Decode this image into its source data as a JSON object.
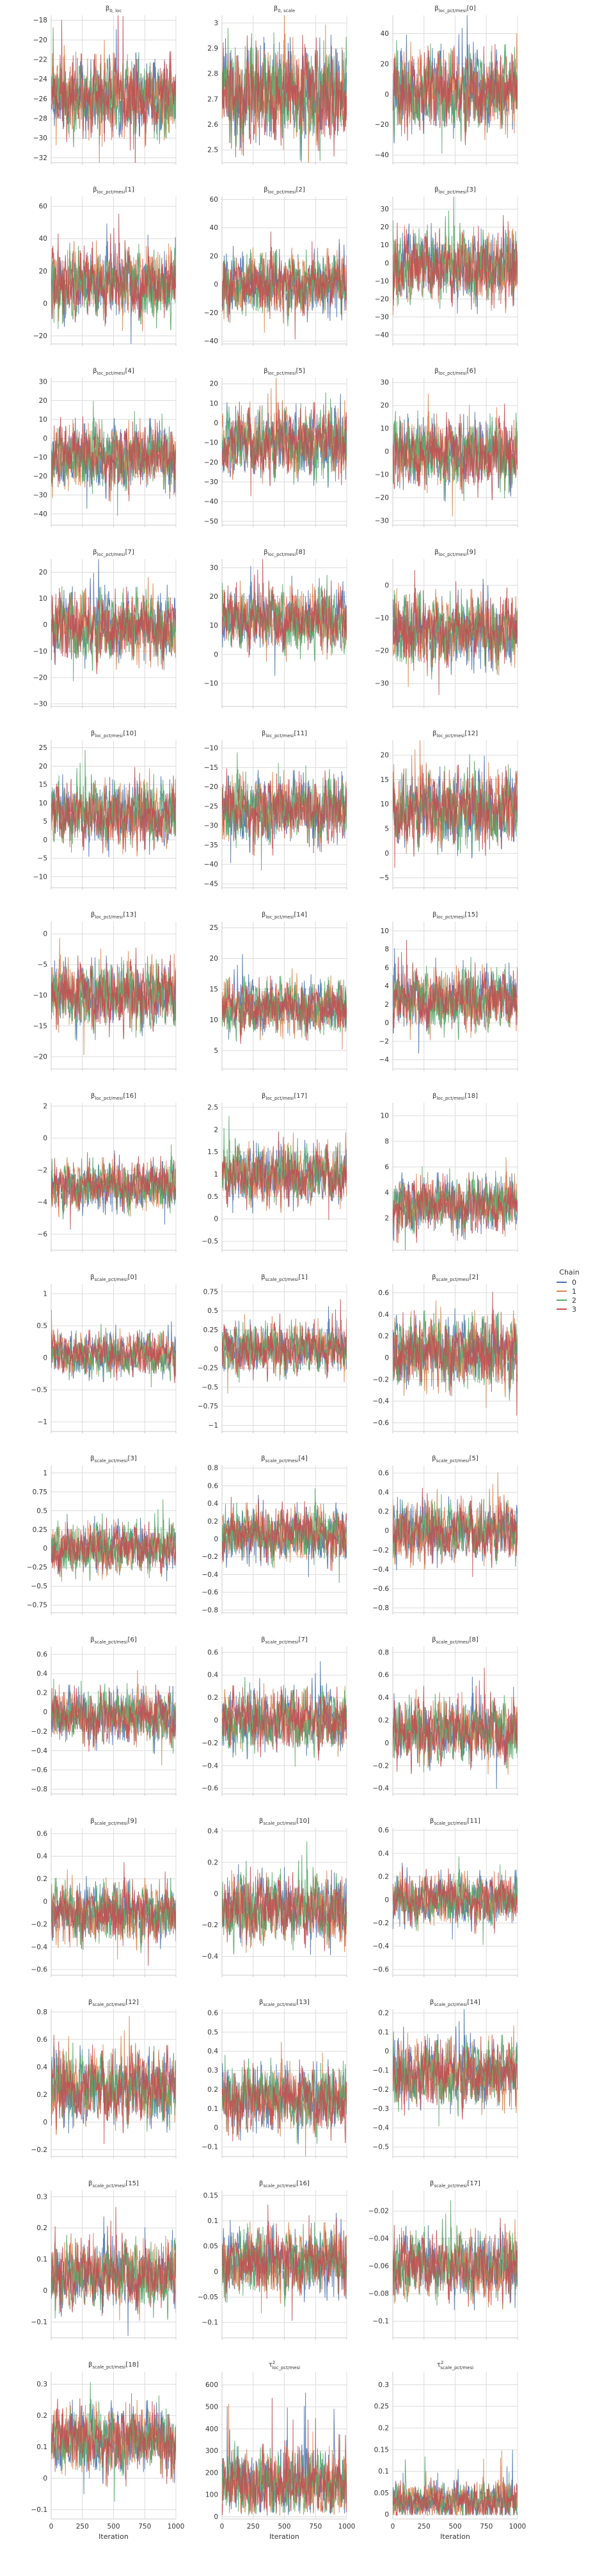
{
  "xlabel": "Iteration",
  "x_ticks": [
    0,
    250,
    500,
    750,
    1000
  ],
  "legend": {
    "title": "Chain",
    "placement": "right",
    "entries": [
      "0",
      "1",
      "2",
      "3"
    ],
    "colors": [
      "#4c72b0",
      "#dd8452",
      "#55a868",
      "#c44e52"
    ]
  },
  "chart_data": {
    "type": "line",
    "iterations": 1000,
    "panels": [
      {
        "title_base": "β",
        "title_sub": "0, loc",
        "title_index": "",
        "yticks": [
          -32,
          -30,
          -28,
          -26,
          -24,
          -22,
          -20,
          -18
        ],
        "ylim": [
          -32.5,
          -17.5
        ],
        "center": -25.8,
        "spread": 1.8
      },
      {
        "title_base": "β",
        "title_sub": "0, scale",
        "title_index": "",
        "yticks": [
          2.5,
          2.6,
          2.7,
          2.8,
          2.9,
          3.0
        ],
        "ylim": [
          2.45,
          3.03
        ],
        "center": 2.72,
        "spread": 0.09
      },
      {
        "title_base": "β",
        "title_sub": "loc_pct/mesi",
        "title_index": "[0]",
        "yticks": [
          -40,
          -20,
          0,
          20,
          40
        ],
        "ylim": [
          -45,
          52
        ],
        "center": 2,
        "spread": 12
      },
      {
        "title_base": "β",
        "title_sub": "loc_pct/mesi",
        "title_index": "[1]",
        "yticks": [
          -20,
          0,
          20,
          40,
          60
        ],
        "ylim": [
          -25,
          66
        ],
        "center": 12,
        "spread": 10
      },
      {
        "title_base": "β",
        "title_sub": "loc_pct/mesi",
        "title_index": "[2]",
        "yticks": [
          -40,
          -20,
          0,
          20,
          40,
          60
        ],
        "ylim": [
          -42,
          62
        ],
        "center": 0,
        "spread": 10
      },
      {
        "title_base": "β",
        "title_sub": "loc_pct/mesi",
        "title_index": "[3]",
        "yticks": [
          -40,
          -30,
          -20,
          -10,
          0,
          10,
          20,
          30
        ],
        "ylim": [
          -45,
          37
        ],
        "center": -2,
        "spread": 9
      },
      {
        "title_base": "β",
        "title_sub": "loc_pct/mesi",
        "title_index": "[4]",
        "yticks": [
          -40,
          -30,
          -20,
          -10,
          0,
          10,
          20,
          30
        ],
        "ylim": [
          -46,
          32
        ],
        "center": -10,
        "spread": 8
      },
      {
        "title_base": "β",
        "title_sub": "loc_pct/mesi",
        "title_index": "[5]",
        "yticks": [
          -50,
          -40,
          -30,
          -20,
          -10,
          0,
          10,
          20
        ],
        "ylim": [
          -52,
          23
        ],
        "center": -10,
        "spread": 8
      },
      {
        "title_base": "β",
        "title_sub": "loc_pct/mesi",
        "title_index": "[6]",
        "yticks": [
          -30,
          -20,
          -10,
          0,
          10,
          20,
          30
        ],
        "ylim": [
          -32,
          32
        ],
        "center": -1,
        "spread": 7
      },
      {
        "title_base": "β",
        "title_sub": "loc_pct/mesi",
        "title_index": "[7]",
        "yticks": [
          -30,
          -20,
          -10,
          0,
          10,
          20
        ],
        "ylim": [
          -31,
          25
        ],
        "center": -1,
        "spread": 6
      },
      {
        "title_base": "β",
        "title_sub": "loc_pct/mesi",
        "title_index": "[8]",
        "yticks": [
          -10,
          0,
          10,
          20,
          30
        ],
        "ylim": [
          -18,
          33
        ],
        "center": 12,
        "spread": 5
      },
      {
        "title_base": "β",
        "title_sub": "loc_pct/mesi",
        "title_index": "[9]",
        "yticks": [
          -30,
          -20,
          -10,
          0
        ],
        "ylim": [
          -37,
          8
        ],
        "center": -14,
        "spread": 5
      },
      {
        "title_base": "β",
        "title_sub": "loc_pct/mesi",
        "title_index": "[10]",
        "yticks": [
          -10,
          -5,
          0,
          5,
          10,
          15,
          20,
          25
        ],
        "ylim": [
          -13,
          27
        ],
        "center": 7,
        "spread": 4
      },
      {
        "title_base": "β",
        "title_sub": "loc_pct/mesi",
        "title_index": "[11]",
        "yticks": [
          -45,
          -40,
          -35,
          -30,
          -25,
          -20,
          -15,
          -10
        ],
        "ylim": [
          -46,
          -8
        ],
        "center": -26,
        "spread": 4
      },
      {
        "title_base": "β",
        "title_sub": "loc_pct/mesi",
        "title_index": "[12]",
        "yticks": [
          -5,
          0,
          5,
          10,
          15,
          20
        ],
        "ylim": [
          -7,
          23
        ],
        "center": 9,
        "spread": 3.5
      },
      {
        "title_base": "β",
        "title_sub": "loc_pct/mesi",
        "title_index": "[13]",
        "yticks": [
          -20,
          -15,
          -10,
          -5,
          0
        ],
        "ylim": [
          -22,
          2
        ],
        "center": -10,
        "spread": 2.5
      },
      {
        "title_base": "β",
        "title_sub": "loc_pct/mesi",
        "title_index": "[14]",
        "yticks": [
          5,
          10,
          15,
          20,
          25
        ],
        "ylim": [
          2,
          26
        ],
        "center": 12,
        "spread": 2
      },
      {
        "title_base": "β",
        "title_sub": "loc_pct/mesi",
        "title_index": "[15]",
        "yticks": [
          -4,
          -2,
          0,
          2,
          4,
          6,
          8,
          10
        ],
        "ylim": [
          -5,
          11
        ],
        "center": 2.5,
        "spread": 1.5
      },
      {
        "title_base": "β",
        "title_sub": "loc_pct/mesi",
        "title_index": "[16]",
        "yticks": [
          -6,
          -4,
          -2,
          0,
          2
        ],
        "ylim": [
          -7,
          2.2
        ],
        "center": -3,
        "spread": 0.7
      },
      {
        "title_base": "β",
        "title_sub": "loc_pct/mesi",
        "title_index": "[17]",
        "yticks": [
          -0.5,
          0.0,
          0.5,
          1.0,
          1.5,
          2.0,
          2.5
        ],
        "ylim": [
          -0.7,
          2.6
        ],
        "center": 1.0,
        "spread": 0.3
      },
      {
        "title_base": "β",
        "title_sub": "loc_pct/mesi",
        "title_index": "[18]",
        "yticks": [
          2,
          4,
          6,
          8,
          10
        ],
        "ylim": [
          -0.5,
          11
        ],
        "center": 3,
        "spread": 1.0
      },
      {
        "title_base": "β",
        "title_sub": "scale_pct/mesi",
        "title_index": "[0]",
        "yticks": [
          -1.0,
          -0.5,
          0.0,
          0.5,
          1.0
        ],
        "ylim": [
          -1.15,
          1.15
        ],
        "center": 0.05,
        "spread": 0.15
      },
      {
        "title_base": "β",
        "title_sub": "scale_pct/mesi",
        "title_index": "[1]",
        "yticks": [
          -1.0,
          -0.75,
          -0.5,
          -0.25,
          0.0,
          0.25,
          0.5,
          0.75
        ],
        "ylim": [
          -1.08,
          0.85
        ],
        "center": 0.0,
        "spread": 0.15
      },
      {
        "title_base": "β",
        "title_sub": "scale_pct/mesi",
        "title_index": "[2]",
        "yticks": [
          -0.6,
          -0.4,
          -0.2,
          0.0,
          0.2,
          0.4,
          0.6
        ],
        "ylim": [
          -0.68,
          0.68
        ],
        "center": 0.05,
        "spread": 0.15
      },
      {
        "title_base": "β",
        "title_sub": "scale_pct/mesi",
        "title_index": "[3]",
        "yticks": [
          -0.75,
          -0.5,
          -0.25,
          0.0,
          0.25,
          0.5,
          0.75,
          1.0
        ],
        "ylim": [
          -0.85,
          1.1
        ],
        "center": 0.0,
        "spread": 0.15
      },
      {
        "title_base": "β",
        "title_sub": "scale_pct/mesi",
        "title_index": "[4]",
        "yticks": [
          -0.8,
          -0.6,
          -0.4,
          -0.2,
          0.0,
          0.2,
          0.4,
          0.6,
          0.8
        ],
        "ylim": [
          -0.83,
          0.83
        ],
        "center": 0.05,
        "spread": 0.14
      },
      {
        "title_base": "β",
        "title_sub": "scale_pct/mesi",
        "title_index": "[5]",
        "yticks": [
          -0.8,
          -0.6,
          -0.4,
          -0.2,
          0.0,
          0.2,
          0.4,
          0.6
        ],
        "ylim": [
          -0.85,
          0.68
        ],
        "center": 0.0,
        "spread": 0.14
      },
      {
        "title_base": "β",
        "title_sub": "scale_pct/mesi",
        "title_index": "[6]",
        "yticks": [
          -0.8,
          -0.6,
          -0.4,
          -0.2,
          0.0,
          0.2,
          0.4,
          0.6
        ],
        "ylim": [
          -0.85,
          0.68
        ],
        "center": -0.05,
        "spread": 0.13
      },
      {
        "title_base": "β",
        "title_sub": "scale_pct/mesi",
        "title_index": "[7]",
        "yticks": [
          -0.6,
          -0.4,
          -0.2,
          0.0,
          0.2,
          0.4,
          0.6
        ],
        "ylim": [
          -0.65,
          0.65
        ],
        "center": 0.0,
        "spread": 0.12
      },
      {
        "title_base": "β",
        "title_sub": "scale_pct/mesi",
        "title_index": "[8]",
        "yticks": [
          -0.4,
          -0.2,
          0.0,
          0.2,
          0.4,
          0.6,
          0.8
        ],
        "ylim": [
          -0.45,
          0.85
        ],
        "center": 0.1,
        "spread": 0.13
      },
      {
        "title_base": "β",
        "title_sub": "scale_pct/mesi",
        "title_index": "[9]",
        "yticks": [
          -0.6,
          -0.4,
          -0.2,
          0.0,
          0.2,
          0.4,
          0.6
        ],
        "ylim": [
          -0.65,
          0.65
        ],
        "center": -0.1,
        "spread": 0.12
      },
      {
        "title_base": "β",
        "title_sub": "scale_pct/mesi",
        "title_index": "[10]",
        "yticks": [
          -0.4,
          -0.2,
          0.0,
          0.2,
          0.4
        ],
        "ylim": [
          -0.52,
          0.42
        ],
        "center": -0.1,
        "spread": 0.1
      },
      {
        "title_base": "β",
        "title_sub": "scale_pct/mesi",
        "title_index": "[11]",
        "yticks": [
          -0.6,
          -0.4,
          -0.2,
          0.0,
          0.2,
          0.4,
          0.6
        ],
        "ylim": [
          -0.65,
          0.62
        ],
        "center": 0.0,
        "spread": 0.1
      },
      {
        "title_base": "β",
        "title_sub": "scale_pct/mesi",
        "title_index": "[12]",
        "yticks": [
          -0.2,
          0.0,
          0.2,
          0.4,
          0.6,
          0.8
        ],
        "ylim": [
          -0.25,
          0.82
        ],
        "center": 0.25,
        "spread": 0.12
      },
      {
        "title_base": "β",
        "title_sub": "scale_pct/mesi",
        "title_index": "[13]",
        "yticks": [
          -0.1,
          0.0,
          0.1,
          0.2,
          0.3,
          0.4,
          0.5,
          0.6
        ],
        "ylim": [
          -0.15,
          0.62
        ],
        "center": 0.15,
        "spread": 0.08
      },
      {
        "title_base": "β",
        "title_sub": "scale_pct/mesi",
        "title_index": "[14]",
        "yticks": [
          -0.5,
          -0.4,
          -0.3,
          -0.2,
          -0.1,
          0.0,
          0.1,
          0.2
        ],
        "ylim": [
          -0.55,
          0.22
        ],
        "center": -0.12,
        "spread": 0.08
      },
      {
        "title_base": "β",
        "title_sub": "scale_pct/mesi",
        "title_index": "[15]",
        "yticks": [
          -0.1,
          0.0,
          0.1,
          0.2,
          0.3
        ],
        "ylim": [
          -0.15,
          0.32
        ],
        "center": 0.05,
        "spread": 0.05
      },
      {
        "title_base": "β",
        "title_sub": "scale_pct/mesi",
        "title_index": "[16]",
        "yticks": [
          -0.1,
          -0.05,
          0.0,
          0.05,
          0.1,
          0.15
        ],
        "ylim": [
          -0.13,
          0.16
        ],
        "center": 0.02,
        "spread": 0.03
      },
      {
        "title_base": "β",
        "title_sub": "scale_pct/mesi",
        "title_index": "[17]",
        "yticks": [
          -0.1,
          -0.08,
          -0.06,
          -0.04,
          -0.02
        ],
        "ylim": [
          -0.112,
          -0.005
        ],
        "center": -0.06,
        "spread": 0.011
      },
      {
        "title_base": "β",
        "title_sub": "scale_pct/mesi",
        "title_index": "[18]",
        "yticks": [
          -0.1,
          0.0,
          0.1,
          0.2,
          0.3
        ],
        "ylim": [
          -0.13,
          0.34
        ],
        "center": 0.12,
        "spread": 0.05
      },
      {
        "title_base": "τ",
        "title_sub": "loc_pct/mesi",
        "title_sup": "2",
        "title_index": "",
        "yticks": [
          0,
          100,
          200,
          300,
          400,
          500,
          600
        ],
        "ylim": [
          -10,
          660
        ],
        "center": 150,
        "spread": 70,
        "positive": true
      },
      {
        "title_base": "τ",
        "title_sub": "scale_pct/mesi",
        "title_sup": "2",
        "title_index": "",
        "yticks": [
          0.0,
          0.05,
          0.1,
          0.15,
          0.2,
          0.25,
          0.3
        ],
        "ylim": [
          -0.01,
          0.33
        ],
        "center": 0.03,
        "spread": 0.02,
        "positive": true
      }
    ]
  }
}
